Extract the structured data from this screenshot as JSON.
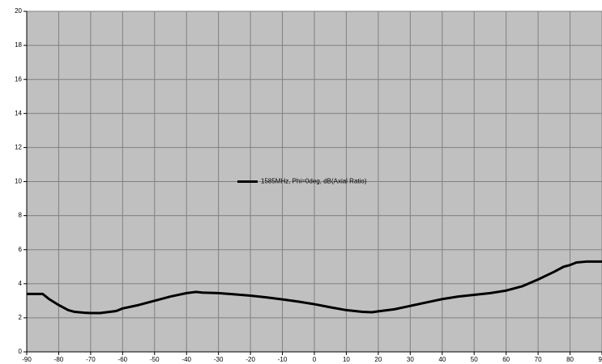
{
  "chart_data": {
    "type": "line",
    "x": [
      -90,
      -85,
      -83,
      -80,
      -77,
      -75,
      -72,
      -70,
      -67,
      -65,
      -62,
      -60,
      -55,
      -50,
      -45,
      -40,
      -37,
      -35,
      -30,
      -25,
      -20,
      -15,
      -10,
      -5,
      0,
      5,
      10,
      15,
      18,
      20,
      25,
      30,
      35,
      40,
      45,
      50,
      55,
      60,
      65,
      70,
      75,
      78,
      80,
      82,
      85,
      90
    ],
    "series": [
      {
        "name": "1585MHz, Phi=0deg, dB(Axial Ratio)",
        "color": "#000000",
        "values": [
          3.4,
          3.4,
          3.1,
          2.75,
          2.45,
          2.35,
          2.3,
          2.28,
          2.28,
          2.33,
          2.4,
          2.55,
          2.75,
          3.0,
          3.25,
          3.45,
          3.52,
          3.48,
          3.45,
          3.38,
          3.3,
          3.2,
          3.08,
          2.95,
          2.8,
          2.62,
          2.45,
          2.35,
          2.33,
          2.38,
          2.5,
          2.7,
          2.9,
          3.1,
          3.25,
          3.35,
          3.45,
          3.6,
          3.85,
          4.25,
          4.7,
          5.0,
          5.1,
          5.25,
          5.3,
          5.3
        ]
      }
    ],
    "xlim": [
      -90,
      90
    ],
    "xticks": [
      -90,
      -80,
      -70,
      -60,
      -50,
      -40,
      -30,
      -20,
      -10,
      0,
      10,
      20,
      30,
      40,
      50,
      60,
      70,
      80,
      90
    ],
    "ylim": [
      0,
      20
    ],
    "yticks": [
      0,
      2,
      4,
      6,
      8,
      10,
      12,
      14,
      16,
      18,
      20
    ],
    "grid": true,
    "legend": "center",
    "background": "#c0c0c0"
  }
}
